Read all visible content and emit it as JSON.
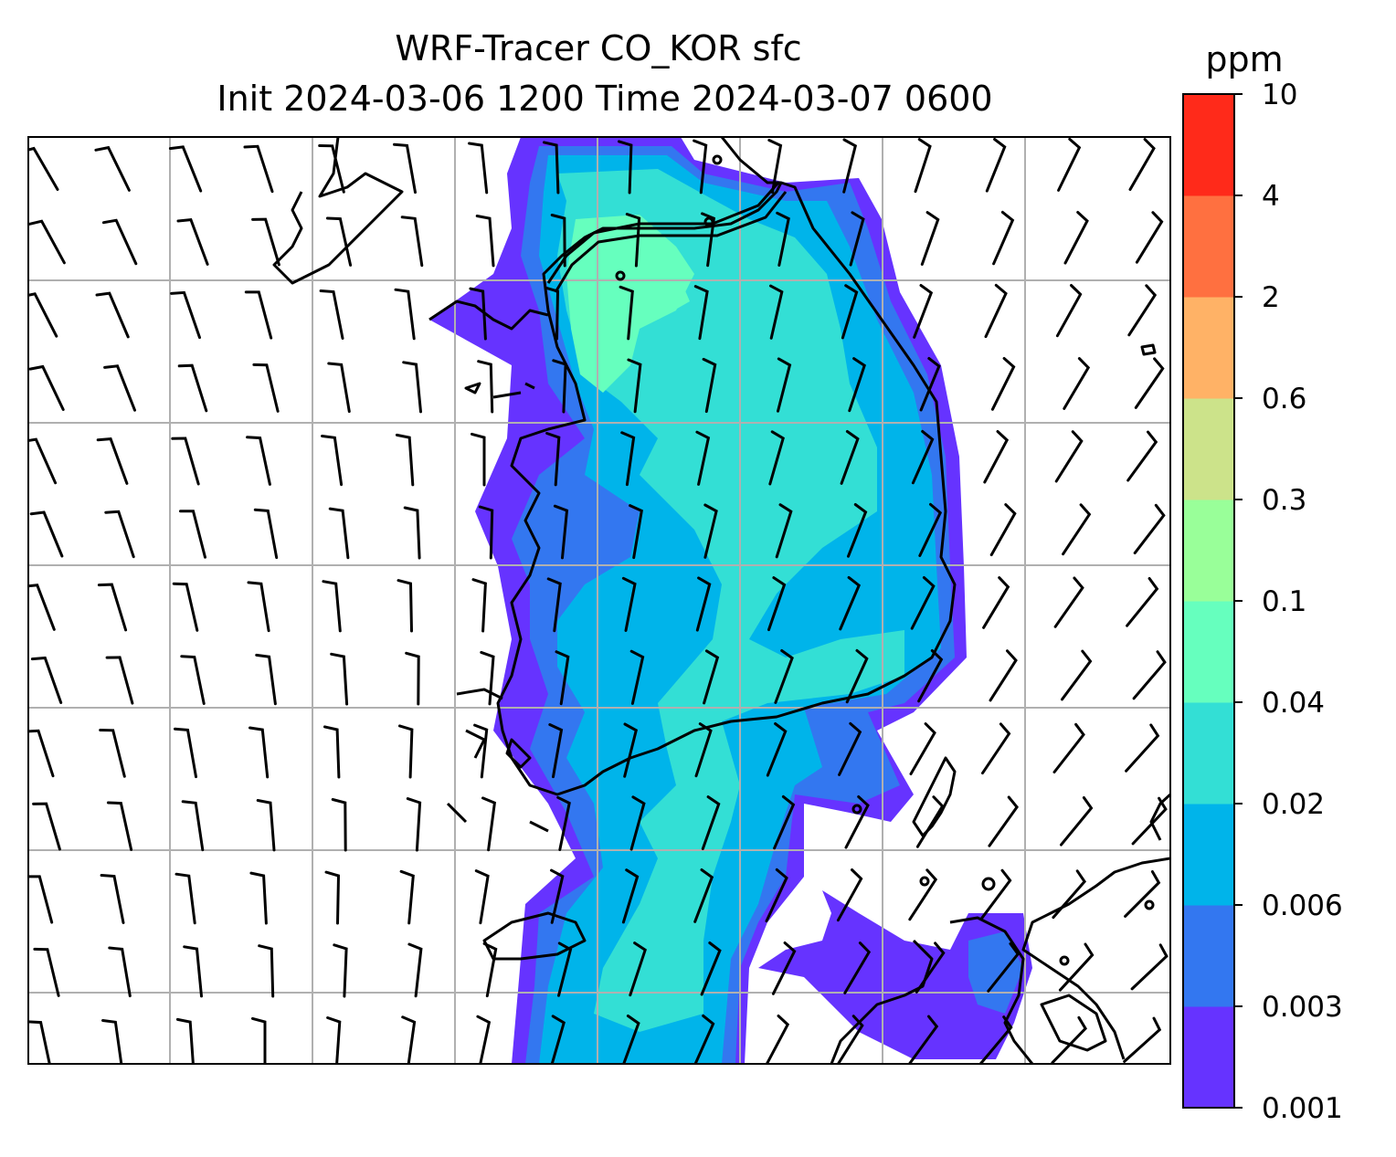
{
  "title": {
    "line1": "WRF-Tracer CO_KOR sfc",
    "line2": "Init 2024-03-06 1200 Time 2024-03-07 0600"
  },
  "colorbar": {
    "unit": "ppm",
    "levels": [
      "0.001",
      "0.003",
      "0.006",
      "0.02",
      "0.04",
      "0.1",
      "0.3",
      "0.6",
      "2",
      "4",
      "10"
    ],
    "colors": [
      "#6633ff",
      "#3377f0",
      "#00b4ea",
      "#33dfd5",
      "#66ffbe",
      "#99ff99",
      "#cce38a",
      "#ffb266",
      "#ff7040",
      "#ff2a1a"
    ]
  },
  "map": {
    "gridlines": true,
    "gridline_color": "#b0b0b0",
    "coastline_color": "#000000",
    "barb_color": "#000000",
    "background": "#ffffff"
  }
}
